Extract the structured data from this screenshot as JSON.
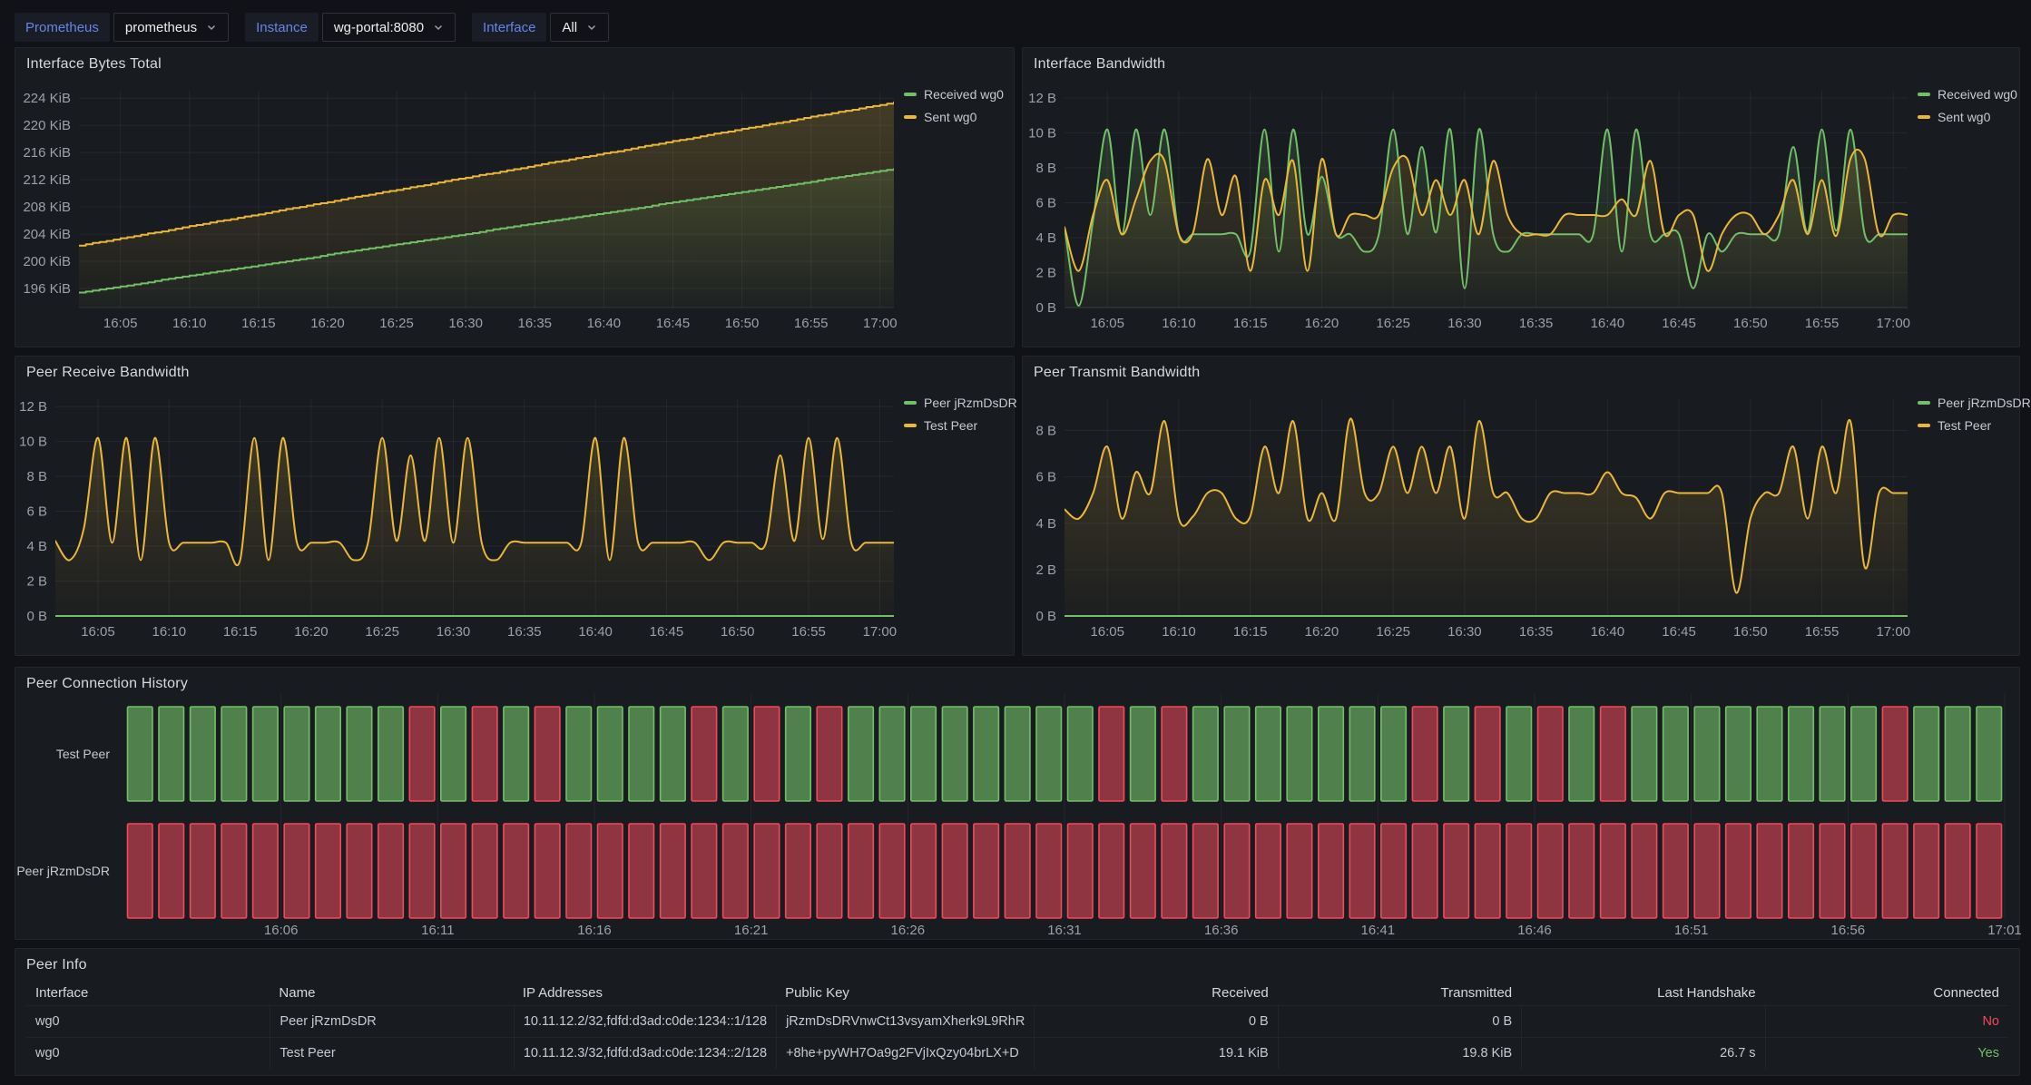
{
  "variables": {
    "prometheus": {
      "label": "Prometheus",
      "value": "prometheus"
    },
    "instance": {
      "label": "Instance",
      "value": "wg-portal:8080"
    },
    "interface": {
      "label": "Interface",
      "value": "All"
    }
  },
  "colors": {
    "green": "#73BF69",
    "yellow": "#EAB839",
    "red": "#F2495C",
    "axis_text": "#9d9fa9",
    "legend_text": "#c9cad1"
  },
  "chart_data": [
    {
      "type": "line",
      "title": "Interface Bytes Total",
      "x_start": "16:02",
      "x_step_minutes": 1,
      "xticks": [
        "16:05",
        "16:10",
        "16:15",
        "16:20",
        "16:25",
        "16:30",
        "16:35",
        "16:40",
        "16:45",
        "16:50",
        "16:55",
        "17:00"
      ],
      "ylim": [
        193.2,
        225.1
      ],
      "ytick_vals": [
        224,
        220,
        216,
        212,
        208,
        204,
        200,
        196
      ],
      "ytick_labels": [
        "224 KiB",
        "220 KiB",
        "216 KiB",
        "212 KiB",
        "208 KiB",
        "204 KiB",
        "200 KiB",
        "196 KiB"
      ],
      "render_style": "step",
      "legend_position": "right",
      "series": [
        {
          "name": "Received wg0",
          "color": "green",
          "values": [
            195.4,
            195.7,
            196.0,
            196.3,
            196.6,
            196.9,
            197.3,
            197.6,
            197.9,
            198.2,
            198.5,
            198.8,
            199.1,
            199.4,
            199.7,
            200.0,
            200.3,
            200.6,
            201.0,
            201.3,
            201.6,
            201.9,
            202.2,
            202.5,
            202.8,
            203.1,
            203.4,
            203.7,
            204.0,
            204.3,
            204.7,
            205.0,
            205.3,
            205.6,
            205.9,
            206.2,
            206.5,
            206.8,
            207.1,
            207.4,
            207.7,
            208.0,
            208.4,
            208.7,
            209.0,
            209.3,
            209.6,
            209.9,
            210.2,
            210.5,
            210.8,
            211.1,
            211.4,
            211.7,
            212.1,
            212.4,
            212.7,
            213.0,
            213.3,
            213.6
          ]
        },
        {
          "name": "Sent wg0",
          "color": "yellow",
          "values": [
            202.3,
            202.7,
            203.0,
            203.4,
            203.7,
            204.1,
            204.4,
            204.8,
            205.2,
            205.5,
            205.9,
            206.2,
            206.6,
            206.9,
            207.3,
            207.7,
            208.0,
            208.4,
            208.7,
            209.1,
            209.5,
            209.8,
            210.2,
            210.5,
            210.9,
            211.2,
            211.6,
            212.0,
            212.3,
            212.7,
            213.0,
            213.4,
            213.7,
            214.1,
            214.5,
            214.8,
            215.2,
            215.5,
            215.9,
            216.2,
            216.6,
            217.0,
            217.3,
            217.7,
            218.0,
            218.4,
            218.8,
            219.1,
            219.5,
            219.8,
            220.2,
            220.5,
            220.9,
            221.3,
            221.6,
            222.0,
            222.3,
            222.7,
            223.0,
            223.4
          ]
        }
      ]
    },
    {
      "type": "line",
      "title": "Interface Bandwidth",
      "x_start": "16:02",
      "x_step_minutes": 1,
      "xticks": [
        "16:05",
        "16:10",
        "16:15",
        "16:20",
        "16:25",
        "16:30",
        "16:35",
        "16:40",
        "16:45",
        "16:50",
        "16:55",
        "17:00"
      ],
      "ylim": [
        0,
        12.42
      ],
      "ytick_vals": [
        12,
        10,
        8,
        6,
        4,
        2,
        0
      ],
      "ytick_labels": [
        "12 B",
        "10 B",
        "8 B",
        "6 B",
        "4 B",
        "2 B",
        "0 B"
      ],
      "smooth": true,
      "legend_position": "right",
      "series": [
        {
          "name": "Received wg0",
          "color": "green",
          "values": [
            4.6,
            0.1,
            5.0,
            10.2,
            4.2,
            10.2,
            5.3,
            10.2,
            4.2,
            4.2,
            4.2,
            4.2,
            4.2,
            3.2,
            10.2,
            3.2,
            10.2,
            4.2,
            7.5,
            4.2,
            4.2,
            3.2,
            4.2,
            10.2,
            4.2,
            9.2,
            4.3,
            10.2,
            1.1,
            10.2,
            4.2,
            3.2,
            4.2,
            4.2,
            4.2,
            4.2,
            4.2,
            4.2,
            10.2,
            3.2,
            10.2,
            4.2,
            4.2,
            4.2,
            1.1,
            4.2,
            3.2,
            4.2,
            4.2,
            4.2,
            4.2,
            9.2,
            4.3,
            10.2,
            4.4,
            10.2,
            4.2,
            4.2,
            4.2,
            4.2
          ]
        },
        {
          "name": "Sent wg0",
          "color": "yellow",
          "values": [
            4.6,
            2.1,
            5.3,
            7.3,
            4.2,
            6.2,
            8.4,
            8.4,
            4.2,
            4.3,
            8.5,
            5.3,
            7.5,
            2.1,
            7.3,
            5.3,
            8.4,
            2.1,
            8.5,
            4.2,
            5.3,
            5.3,
            5.3,
            8.0,
            8.5,
            5.3,
            7.3,
            5.3,
            7.3,
            4.2,
            8.4,
            5.3,
            4.2,
            4.2,
            4.2,
            5.3,
            5.3,
            5.3,
            5.3,
            6.2,
            5.3,
            8.4,
            4.2,
            5.3,
            5.3,
            2.1,
            4.2,
            5.3,
            5.3,
            4.2,
            5.3,
            7.3,
            4.2,
            7.3,
            4.1,
            8.5,
            8.5,
            4.2,
            5.3,
            5.3
          ]
        }
      ]
    },
    {
      "type": "line",
      "title": "Peer Receive Bandwidth",
      "x_start": "16:02",
      "x_step_minutes": 1,
      "xticks": [
        "16:05",
        "16:10",
        "16:15",
        "16:20",
        "16:25",
        "16:30",
        "16:35",
        "16:40",
        "16:45",
        "16:50",
        "16:55",
        "17:00"
      ],
      "ylim": [
        0,
        12.42
      ],
      "ytick_vals": [
        12,
        10,
        8,
        6,
        4,
        2,
        0
      ],
      "ytick_labels": [
        "12 B",
        "10 B",
        "8 B",
        "6 B",
        "4 B",
        "2 B",
        "0 B"
      ],
      "smooth": true,
      "legend_position": "right",
      "series": [
        {
          "name": "Peer jRzmDsDR",
          "color": "green",
          "flat_value": 0
        },
        {
          "name": "Test Peer",
          "color": "yellow",
          "values": [
            4.3,
            3.2,
            5.0,
            10.2,
            4.2,
            10.2,
            3.2,
            10.2,
            4.2,
            4.2,
            4.2,
            4.2,
            4.2,
            3.2,
            10.2,
            3.2,
            10.2,
            4.2,
            4.2,
            4.2,
            4.2,
            3.2,
            4.2,
            10.2,
            4.3,
            9.2,
            4.3,
            10.2,
            4.2,
            10.2,
            4.2,
            3.2,
            4.2,
            4.2,
            4.2,
            4.2,
            4.2,
            4.2,
            10.2,
            3.2,
            10.2,
            4.2,
            4.2,
            4.2,
            4.2,
            4.2,
            3.2,
            4.2,
            4.2,
            4.2,
            4.2,
            9.2,
            4.3,
            10.2,
            4.4,
            10.2,
            4.2,
            4.2,
            4.2,
            4.2
          ]
        }
      ]
    },
    {
      "type": "line",
      "title": "Peer Transmit Bandwidth",
      "x_start": "16:02",
      "x_step_minutes": 1,
      "xticks": [
        "16:05",
        "16:10",
        "16:15",
        "16:20",
        "16:25",
        "16:30",
        "16:35",
        "16:40",
        "16:45",
        "16:50",
        "16:55",
        "17:00"
      ],
      "ylim": [
        0,
        9.35
      ],
      "ytick_vals": [
        8,
        6,
        4,
        2,
        0
      ],
      "ytick_labels": [
        "8 B",
        "6 B",
        "4 B",
        "2 B",
        "0 B"
      ],
      "smooth": true,
      "legend_position": "right",
      "series": [
        {
          "name": "Peer jRzmDsDR",
          "color": "green",
          "flat_value": 0
        },
        {
          "name": "Test Peer",
          "color": "yellow",
          "values": [
            4.6,
            4.2,
            5.3,
            7.3,
            4.2,
            6.2,
            5.3,
            8.4,
            4.2,
            4.3,
            5.3,
            5.3,
            4.2,
            4.3,
            7.3,
            5.3,
            8.4,
            4.2,
            5.3,
            4.2,
            8.5,
            5.3,
            5.3,
            7.3,
            5.3,
            7.3,
            5.3,
            7.3,
            4.2,
            8.4,
            5.3,
            5.3,
            4.2,
            4.2,
            5.3,
            5.3,
            5.3,
            5.3,
            6.2,
            5.3,
            5.1,
            4.2,
            5.3,
            5.3,
            5.3,
            5.3,
            5.3,
            1.0,
            4.2,
            5.3,
            5.3,
            7.3,
            4.2,
            7.3,
            5.3,
            8.4,
            2.1,
            5.3,
            5.3,
            5.3
          ]
        }
      ]
    },
    {
      "type": "state-timeline",
      "title": "Peer Connection History",
      "x_start": "16:02",
      "x_step_minutes": 1,
      "xticks": [
        "16:06",
        "16:11",
        "16:16",
        "16:21",
        "16:26",
        "16:31",
        "16:36",
        "16:41",
        "16:46",
        "16:51",
        "16:56",
        "17:01"
      ],
      "state_colors": {
        "up": "green",
        "down": "red"
      },
      "rows": [
        {
          "name": "Test Peer",
          "states": [
            1,
            1,
            1,
            1,
            1,
            1,
            1,
            1,
            1,
            0,
            1,
            0,
            1,
            0,
            1,
            1,
            1,
            1,
            0,
            1,
            0,
            1,
            0,
            1,
            1,
            1,
            1,
            1,
            1,
            1,
            1,
            0,
            1,
            0,
            1,
            1,
            1,
            1,
            1,
            1,
            1,
            0,
            1,
            0,
            1,
            0,
            1,
            0,
            1,
            1,
            1,
            1,
            1,
            1,
            1,
            1,
            0,
            1,
            1,
            1
          ]
        },
        {
          "name": "Peer jRzmDsDR",
          "states": [
            0,
            0,
            0,
            0,
            0,
            0,
            0,
            0,
            0,
            0,
            0,
            0,
            0,
            0,
            0,
            0,
            0,
            0,
            0,
            0,
            0,
            0,
            0,
            0,
            0,
            0,
            0,
            0,
            0,
            0,
            0,
            0,
            0,
            0,
            0,
            0,
            0,
            0,
            0,
            0,
            0,
            0,
            0,
            0,
            0,
            0,
            0,
            0,
            0,
            0,
            0,
            0,
            0,
            0,
            0,
            0,
            0,
            0,
            0,
            0
          ]
        }
      ]
    },
    {
      "type": "table",
      "title": "Peer Info",
      "columns": [
        {
          "label": "Interface",
          "align": "left"
        },
        {
          "label": "Name",
          "align": "left"
        },
        {
          "label": "IP Addresses",
          "align": "left"
        },
        {
          "label": "Public Key",
          "align": "left"
        },
        {
          "label": "Received",
          "align": "right"
        },
        {
          "label": "Transmitted",
          "align": "right"
        },
        {
          "label": "Last Handshake",
          "align": "right"
        },
        {
          "label": "Connected",
          "align": "right"
        }
      ],
      "rows": [
        [
          "wg0",
          "Peer jRzmDsDR",
          "10.11.12.2/32,fdfd:d3ad:c0de:1234::1/128",
          "jRzmDsDRVnwCt13vsyamXherk9L9RhR",
          "0 B",
          "0 B",
          "",
          "No"
        ],
        [
          "wg0",
          "Test Peer",
          "10.11.12.3/32,fdfd:d3ad:c0de:1234::2/128",
          "+8he+pyWH7Oa9g2FVjIxQzy04brLX+D",
          "19.1 KiB",
          "19.8 KiB",
          "26.7 s",
          "Yes"
        ]
      ],
      "value_colors": {
        "No": "red",
        "Yes": "green"
      }
    }
  ]
}
